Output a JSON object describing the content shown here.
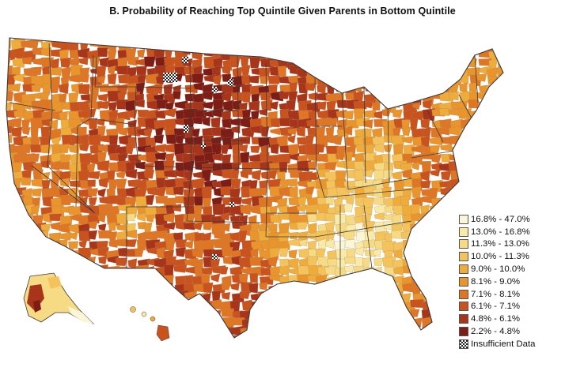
{
  "title": "B. Probability of Reaching Top Quintile Given Parents in Bottom Quintile",
  "legend": [
    {
      "label": "16.8% - 47.0%",
      "color": "#fbf6d8"
    },
    {
      "label": "13.0% - 16.8%",
      "color": "#faeaa8"
    },
    {
      "label": "11.3% - 13.0%",
      "color": "#f7da84"
    },
    {
      "label": "10.0% - 11.3%",
      "color": "#f5c35c"
    },
    {
      "label": "9.0% - 10.0%",
      "color": "#f0ac3a"
    },
    {
      "label": "8.1% - 9.0%",
      "color": "#ea942c"
    },
    {
      "label": "7.1% - 8.1%",
      "color": "#df7624"
    },
    {
      "label": "6.1% - 7.1%",
      "color": "#c9521d"
    },
    {
      "label": "4.8% - 6.1%",
      "color": "#a83519"
    },
    {
      "label": "2.2% - 4.8%",
      "color": "#7e1c16"
    }
  ],
  "insufficient_label": "Insufficient Data"
}
